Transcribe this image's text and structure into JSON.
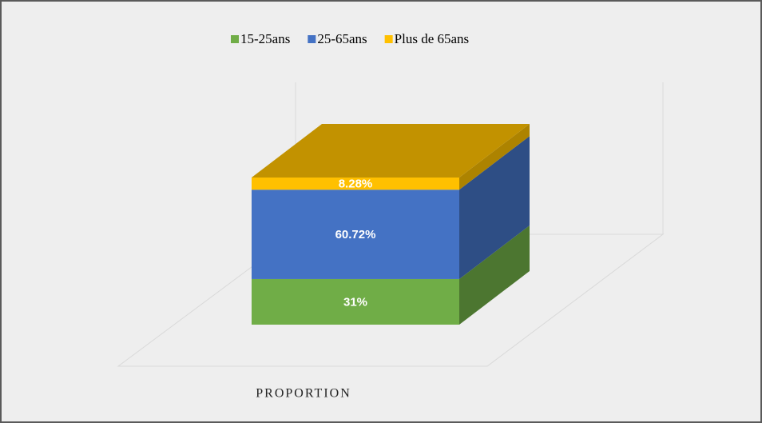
{
  "chart_data": {
    "type": "bar3d_stacked",
    "categories": [
      "PROPORTION"
    ],
    "series": [
      {
        "name": "15-25ans",
        "color": "#70ad47",
        "values": [
          31
        ],
        "value_labels": [
          "31%"
        ]
      },
      {
        "name": "25-65ans",
        "color": "#4472c4",
        "values": [
          60.72
        ],
        "value_labels": [
          "60.72%"
        ]
      },
      {
        "name": "Plus de 65ans",
        "color": "#ffc000",
        "values": [
          8.28
        ],
        "value_labels": [
          "8.28%"
        ]
      }
    ],
    "legend": "top"
  }
}
